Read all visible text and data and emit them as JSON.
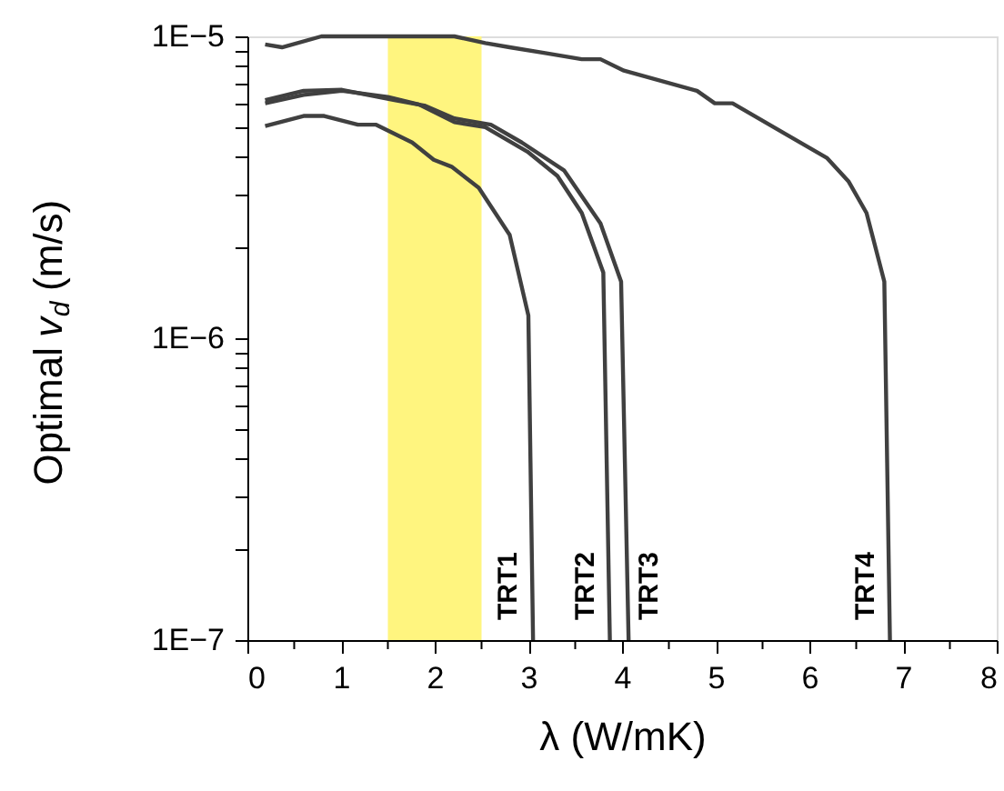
{
  "chart_data": {
    "type": "line",
    "xlabel": "λ (W/mK)",
    "ylabel": "Optimal v$_{d}$ (m/s)",
    "log": "y",
    "grid": false,
    "legend": false,
    "marker": "none",
    "line_style": "solid",
    "xlim": [
      0,
      8
    ],
    "xticks": [
      0,
      {
        "value": 0.5,
        "label": null
      },
      1,
      {
        "value": 1.5,
        "label": null
      },
      2,
      {
        "value": 2.5,
        "label": null
      },
      3,
      {
        "value": 3.5,
        "label": null
      },
      4,
      {
        "value": 4.5,
        "label": null
      },
      5,
      {
        "value": 5.5,
        "label": null
      },
      6,
      {
        "value": 6.5,
        "label": null
      },
      7,
      {
        "value": 7.5,
        "label": null
      },
      8
    ],
    "ylim": [
      1e-07,
      1e-05
    ],
    "yticks": [
      {
        "value": 1e-07,
        "label": "1E−7"
      },
      {
        "value": 2e-07,
        "label": null
      },
      {
        "value": 3e-07,
        "label": null
      },
      {
        "value": 4e-07,
        "label": null
      },
      {
        "value": 5e-07,
        "label": null
      },
      {
        "value": 6e-07,
        "label": null
      },
      {
        "value": 7e-07,
        "label": null
      },
      {
        "value": 8e-07,
        "label": null
      },
      {
        "value": 9e-07,
        "label": null
      },
      {
        "value": 1e-06,
        "label": "1E−6"
      },
      {
        "value": 2e-06,
        "label": null
      },
      {
        "value": 3e-06,
        "label": null
      },
      {
        "value": 4e-06,
        "label": null
      },
      {
        "value": 5e-06,
        "label": null
      },
      {
        "value": 6e-06,
        "label": null
      },
      {
        "value": 7e-06,
        "label": null
      },
      {
        "value": 8e-06,
        "label": null
      },
      {
        "value": 9e-06,
        "label": null
      },
      {
        "value": 1e-05,
        "label": "1E−5"
      }
    ],
    "bands": [
      {
        "axis": "x",
        "from": 1.5,
        "to": 2.5,
        "color": "#fff57f"
      }
    ],
    "series": [
      {
        "name": "TRT1",
        "color": "#404040",
        "x": [
          0.19,
          0.6,
          0.82,
          1.18,
          1.37,
          1.76,
          1.99,
          2.18,
          2.47,
          2.8,
          3.0,
          3.05
        ],
        "values": [
          5.05e-06,
          5.45e-06,
          5.45e-06,
          5.1e-06,
          5.1e-06,
          4.45e-06,
          3.9e-06,
          3.7e-06,
          3.15e-06,
          2.2e-06,
          1.19e-06,
          1e-07
        ]
      },
      {
        "name": "TRT2",
        "color": "#404040",
        "x": [
          0.19,
          0.6,
          1.01,
          1.5,
          1.83,
          2.21,
          2.54,
          2.99,
          3.31,
          3.57,
          3.8,
          3.87
        ],
        "values": [
          6e-06,
          6.4e-06,
          6.6e-06,
          6.3e-06,
          5.95e-06,
          5.2e-06,
          5e-06,
          4.15e-06,
          3.45e-06,
          2.6e-06,
          1.65e-06,
          1e-07
        ]
      },
      {
        "name": "TRT3",
        "color": "#404040",
        "x": [
          0.19,
          0.6,
          1.01,
          1.57,
          1.89,
          2.21,
          2.6,
          2.93,
          3.38,
          3.77,
          3.99,
          4.07
        ],
        "values": [
          6.15e-06,
          6.6e-06,
          6.65e-06,
          6.15e-06,
          5.9e-06,
          5.35e-06,
          5.1e-06,
          4.45e-06,
          3.6e-06,
          2.4e-06,
          1.54e-06,
          1e-07
        ]
      },
      {
        "name": "TRT4",
        "color": "#404040",
        "x": [
          0.19,
          0.37,
          0.79,
          2.21,
          2.54,
          2.8,
          3.18,
          3.57,
          3.77,
          4.02,
          4.8,
          4.99,
          5.18,
          5.77,
          6.19,
          6.42,
          6.61,
          6.8,
          6.86
        ],
        "values": [
          9.4e-06,
          9.2e-06,
          1e-05,
          1e-05,
          9.5e-06,
          9.2e-06,
          8.8e-06,
          8.4e-06,
          8.4e-06,
          7.7e-06,
          6.6e-06,
          6e-06,
          6e-06,
          4.7e-06,
          3.95e-06,
          3.3e-06,
          2.6e-06,
          1.54e-06,
          1e-07
        ]
      }
    ]
  }
}
